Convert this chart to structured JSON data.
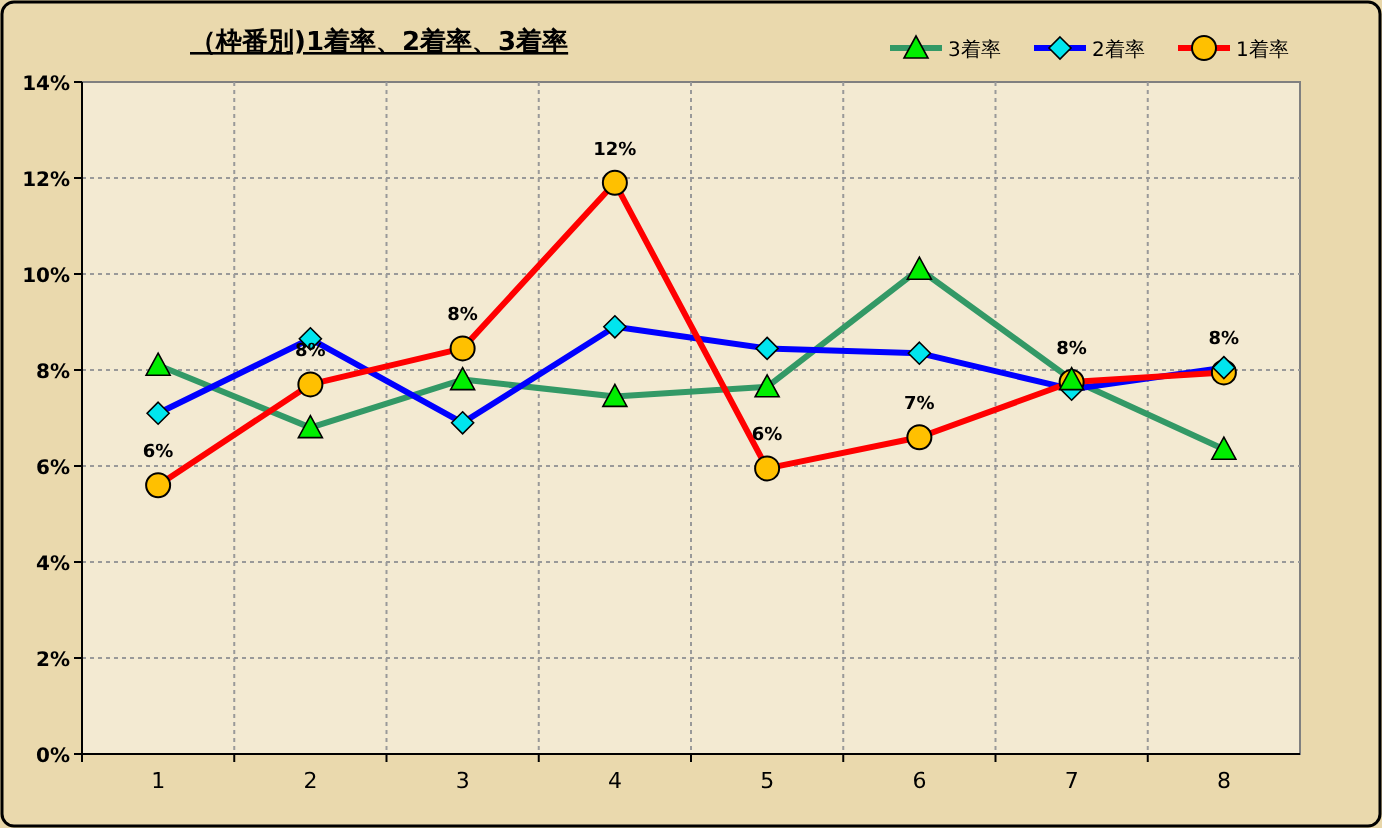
{
  "chart_data": {
    "type": "line",
    "title": "（枠番別)1着率、2着率、3着率",
    "categories": [
      "1",
      "2",
      "3",
      "4",
      "5",
      "6",
      "7",
      "8"
    ],
    "series": [
      {
        "name": "3着率",
        "color": "#339966",
        "marker": "triangle",
        "values": [
          8.1,
          6.8,
          7.8,
          7.45,
          7.65,
          10.1,
          7.8,
          6.35
        ]
      },
      {
        "name": "2着率",
        "color": "#0000ff",
        "marker": "diamond",
        "values": [
          7.1,
          8.65,
          6.9,
          8.9,
          8.45,
          8.35,
          7.6,
          8.05
        ]
      },
      {
        "name": "1着率",
        "color": "#ff0000",
        "marker": "circle",
        "values": [
          5.6,
          7.7,
          8.45,
          11.9,
          5.95,
          6.6,
          7.75,
          7.95
        ],
        "value_labels": [
          "6%",
          "8%",
          "8%",
          "12%",
          "6%",
          "7%",
          "8%",
          "8%"
        ]
      }
    ],
    "ylim": [
      0,
      14
    ],
    "yticks": [
      {
        "value": 0,
        "label": "0%"
      },
      {
        "value": 2,
        "label": "2%"
      },
      {
        "value": 4,
        "label": "4%"
      },
      {
        "value": 6,
        "label": "6%"
      },
      {
        "value": 8,
        "label": "8%"
      },
      {
        "value": 10,
        "label": "10%"
      },
      {
        "value": 12,
        "label": "12%"
      },
      {
        "value": 14,
        "label": "14%"
      }
    ],
    "grid": true,
    "legend": "top right",
    "line_style": "solid"
  }
}
